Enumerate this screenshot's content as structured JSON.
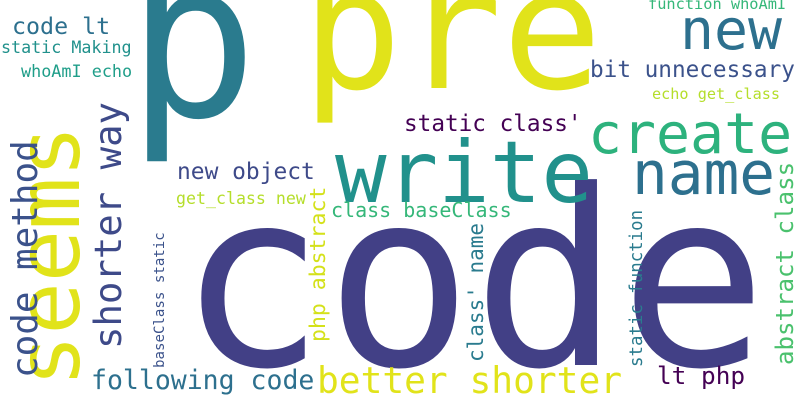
{
  "words": [
    {
      "key": "code",
      "text": "code",
      "color": "#424086",
      "vertical": false
    },
    {
      "key": "p",
      "text": "p",
      "color": "#2a7b8e",
      "vertical": false
    },
    {
      "key": "pre",
      "text": "pre",
      "color": "#e1e31a",
      "vertical": false
    },
    {
      "key": "write",
      "text": "write",
      "color": "#21918c",
      "vertical": false
    },
    {
      "key": "seems",
      "text": "seems",
      "color": "#e1e31a",
      "vertical": true
    },
    {
      "key": "create",
      "text": "create",
      "color": "#2db27d",
      "vertical": false
    },
    {
      "key": "name",
      "text": "name",
      "color": "#2d708e",
      "vertical": false
    },
    {
      "key": "new",
      "text": "new",
      "color": "#2d708e",
      "vertical": false
    },
    {
      "key": "code-method",
      "text": "code method",
      "color": "#3b528b",
      "vertical": true
    },
    {
      "key": "shorter-way",
      "text": "shorter way",
      "color": "#3e4a89",
      "vertical": true
    },
    {
      "key": "better-shorter",
      "text": "better shorter",
      "color": "#e1e31a",
      "vertical": false
    },
    {
      "key": "following-code",
      "text": "following code",
      "color": "#2d708e",
      "vertical": false
    },
    {
      "key": "code-lt",
      "text": "code lt",
      "color": "#2d708e",
      "vertical": false
    },
    {
      "key": "bit-unnecessary",
      "text": "bit unnecessary",
      "color": "#3b528b",
      "vertical": false
    },
    {
      "key": "static-class",
      "text": "static class'",
      "color": "#440154",
      "vertical": false
    },
    {
      "key": "new-object",
      "text": "new object",
      "color": "#3e4a89",
      "vertical": false
    },
    {
      "key": "class-basecl",
      "text": "class baseClass",
      "color": "#35b779",
      "vertical": false
    },
    {
      "key": "class-name",
      "text": "class' name",
      "color": "#2a7b8e",
      "vertical": true
    },
    {
      "key": "php-abstract",
      "text": "php abstract",
      "color": "#d4e11a",
      "vertical": true
    },
    {
      "key": "basecl-static",
      "text": "baseClass static",
      "color": "#3b528b",
      "vertical": true
    },
    {
      "key": "static-function",
      "text": "static function",
      "color": "#2a7b8e",
      "vertical": true
    },
    {
      "key": "abstract-class",
      "text": "abstract class",
      "color": "#4ac16d",
      "vertical": true
    },
    {
      "key": "lt-php",
      "text": "lt php",
      "color": "#440154",
      "vertical": false
    },
    {
      "key": "function-whoami",
      "text": "function whoAmI",
      "color": "#35b779",
      "vertical": false
    },
    {
      "key": "echo-get-class",
      "text": "echo get_class",
      "color": "#b5de2b",
      "vertical": false
    },
    {
      "key": "get-class-new",
      "text": "get_class new",
      "color": "#b5de2b",
      "vertical": false
    },
    {
      "key": "static-making",
      "text": "static Making",
      "color": "#21918c",
      "vertical": false
    },
    {
      "key": "whoami-echo",
      "text": "whoAmI echo",
      "color": "#1f9e89",
      "vertical": false
    }
  ]
}
